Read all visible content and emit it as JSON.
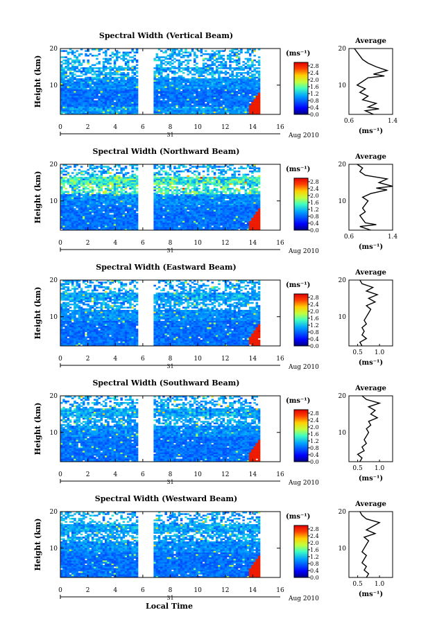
{
  "figure": {
    "xlabel": "Local Time",
    "date_label": "Aug 2010",
    "day_label": "31",
    "colorbar_unit": "(ms⁻¹)",
    "colorbar_ticks": [
      "0.0",
      "0.4",
      "0.8",
      "1.2",
      "1.6",
      "2.0",
      "2.4",
      "2.8"
    ],
    "time_ticks": [
      "0",
      "2",
      "4",
      "6",
      "8",
      "10",
      "12",
      "14",
      "16"
    ],
    "height_ticks": [
      "10",
      "20"
    ],
    "ylabel": "Height (km)",
    "avg_title": "Average",
    "avg_xlabel": "(ms⁻¹)"
  },
  "chart_data": [
    {
      "type": "heatmap",
      "title": "Spectral Width (Vertical Beam)",
      "xlabel": "Local Time",
      "ylabel": "Height (km)",
      "xlim": [
        0,
        16
      ],
      "ylim": [
        2,
        20
      ],
      "clim": [
        0,
        3.0
      ],
      "data_gaps_hours": [
        [
          5.5,
          6.7
        ],
        [
          14.4,
          16
        ]
      ],
      "average": {
        "xlim": [
          0.6,
          1.4
        ],
        "xticks": [
          "0.6",
          "1.4"
        ],
        "profile": [
          [
            1.05,
            2
          ],
          [
            0.9,
            3
          ],
          [
            1.15,
            3.5
          ],
          [
            0.95,
            4
          ],
          [
            1.1,
            5
          ],
          [
            0.85,
            6
          ],
          [
            0.95,
            7
          ],
          [
            0.8,
            8
          ],
          [
            0.9,
            9
          ],
          [
            0.75,
            10
          ],
          [
            0.85,
            11
          ],
          [
            0.95,
            12
          ],
          [
            1.25,
            12.5
          ],
          [
            1.05,
            13
          ],
          [
            1.3,
            14
          ],
          [
            1.1,
            15
          ],
          [
            0.95,
            16
          ],
          [
            0.85,
            17
          ],
          [
            0.8,
            18
          ],
          [
            0.75,
            19
          ],
          [
            0.7,
            20
          ]
        ]
      }
    },
    {
      "type": "heatmap",
      "title": "Spectral Width (Northward Beam)",
      "xlabel": "Local Time",
      "ylabel": "Height (km)",
      "xlim": [
        0,
        16
      ],
      "ylim": [
        2,
        20
      ],
      "clim": [
        0,
        3.0
      ],
      "data_gaps_hours": [
        [
          5.5,
          6.7
        ],
        [
          14.4,
          16
        ]
      ],
      "average": {
        "xlim": [
          0.6,
          1.4
        ],
        "xticks": [
          "0.6",
          "1.4"
        ],
        "profile": [
          [
            1.0,
            2
          ],
          [
            0.8,
            3
          ],
          [
            1.1,
            3.5
          ],
          [
            0.9,
            4
          ],
          [
            0.85,
            5
          ],
          [
            0.8,
            6
          ],
          [
            0.9,
            7
          ],
          [
            0.85,
            8
          ],
          [
            0.9,
            9
          ],
          [
            0.95,
            10
          ],
          [
            0.85,
            11
          ],
          [
            1.0,
            12
          ],
          [
            1.3,
            13
          ],
          [
            1.1,
            13.5
          ],
          [
            1.4,
            14
          ],
          [
            1.15,
            15
          ],
          [
            1.3,
            16
          ],
          [
            0.9,
            17
          ],
          [
            0.8,
            18
          ],
          [
            0.85,
            19
          ],
          [
            0.75,
            20
          ]
        ]
      }
    },
    {
      "type": "heatmap",
      "title": "Spectral Width (Eastward Beam)",
      "xlabel": "Local Time",
      "ylabel": "Height (km)",
      "xlim": [
        0,
        16
      ],
      "ylim": [
        2,
        20
      ],
      "clim": [
        0,
        3.0
      ],
      "data_gaps_hours": [
        [
          5.5,
          6.7
        ],
        [
          14.4,
          16
        ]
      ],
      "average": {
        "xlim": [
          0.3,
          1.3
        ],
        "xticks": [
          "0.5",
          "1.0"
        ],
        "profile": [
          [
            0.6,
            2
          ],
          [
            0.55,
            3
          ],
          [
            0.7,
            4
          ],
          [
            0.6,
            5
          ],
          [
            0.65,
            6
          ],
          [
            0.6,
            7
          ],
          [
            0.7,
            8
          ],
          [
            0.65,
            9
          ],
          [
            0.7,
            10
          ],
          [
            0.75,
            11
          ],
          [
            0.8,
            12
          ],
          [
            0.7,
            13
          ],
          [
            0.9,
            14
          ],
          [
            0.75,
            15
          ],
          [
            0.95,
            16
          ],
          [
            0.7,
            17
          ],
          [
            0.85,
            18
          ],
          [
            0.6,
            19
          ],
          [
            0.55,
            20
          ]
        ]
      }
    },
    {
      "type": "heatmap",
      "title": "Spectral Width (Southward Beam)",
      "xlabel": "Local Time",
      "ylabel": "Height (km)",
      "xlim": [
        0,
        16
      ],
      "ylim": [
        2,
        20
      ],
      "clim": [
        0,
        3.0
      ],
      "data_gaps_hours": [
        [
          5.5,
          6.7
        ],
        [
          14.4,
          16
        ]
      ],
      "average": {
        "xlim": [
          0.3,
          1.3
        ],
        "xticks": [
          "0.5",
          "1.0"
        ],
        "profile": [
          [
            0.55,
            2
          ],
          [
            0.6,
            3
          ],
          [
            0.5,
            4
          ],
          [
            0.65,
            5
          ],
          [
            0.6,
            6
          ],
          [
            0.7,
            7
          ],
          [
            0.65,
            8
          ],
          [
            0.7,
            9
          ],
          [
            0.75,
            10
          ],
          [
            0.7,
            11
          ],
          [
            0.8,
            12
          ],
          [
            0.75,
            13
          ],
          [
            0.95,
            14
          ],
          [
            0.8,
            15
          ],
          [
            0.9,
            16
          ],
          [
            0.75,
            17
          ],
          [
            1.0,
            18
          ],
          [
            0.7,
            19
          ],
          [
            0.6,
            20
          ]
        ]
      }
    },
    {
      "type": "heatmap",
      "title": "Spectral Width (Westward Beam)",
      "xlabel": "Local Time",
      "ylabel": "Height (km)",
      "xlim": [
        0,
        16
      ],
      "ylim": [
        2,
        20
      ],
      "clim": [
        0,
        3.0
      ],
      "data_gaps_hours": [
        [
          5.5,
          6.7
        ],
        [
          14.4,
          16
        ]
      ],
      "average": {
        "xlim": [
          0.3,
          1.3
        ],
        "xticks": [
          "0.5",
          "1.0"
        ],
        "profile": [
          [
            0.7,
            2
          ],
          [
            0.75,
            3
          ],
          [
            0.65,
            4
          ],
          [
            0.7,
            5
          ],
          [
            0.6,
            6
          ],
          [
            0.65,
            7
          ],
          [
            0.7,
            8
          ],
          [
            0.6,
            9
          ],
          [
            0.65,
            10
          ],
          [
            0.7,
            11
          ],
          [
            0.75,
            12
          ],
          [
            0.65,
            13
          ],
          [
            0.9,
            14
          ],
          [
            0.7,
            15
          ],
          [
            0.85,
            16
          ],
          [
            1.0,
            17
          ],
          [
            0.7,
            18
          ],
          [
            0.6,
            19
          ],
          [
            0.55,
            20
          ]
        ]
      }
    }
  ]
}
